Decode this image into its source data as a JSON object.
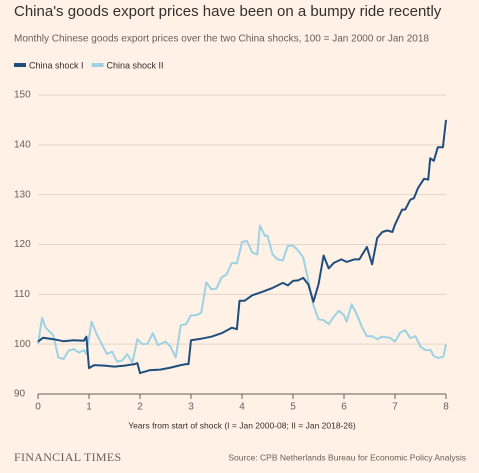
{
  "chart_data": {
    "type": "line",
    "title": "China's goods export prices have been on a bumpy ride recently",
    "subtitle": "Monthly Chinese goods export prices over the two China shocks, 100 = Jan 2000 or Jan 2018",
    "x_label": "Years from start of shock (I = Jan 2000-08; II = Jan 2018-26)",
    "source": "Source: CPB Netherlands Bureau for Economic Policy Analysis",
    "brand": "FINANCIAL TIMES",
    "xlim": [
      0,
      8
    ],
    "xticks": [
      0,
      1,
      2,
      3,
      4,
      5,
      6,
      7,
      8
    ],
    "ylim": [
      90,
      150
    ],
    "yticks": [
      90,
      100,
      110,
      120,
      130,
      140,
      150
    ],
    "grid": true,
    "legend": "top-left",
    "series": [
      {
        "name": "China shock I",
        "color": "#1f4e7e",
        "x": [
          0,
          0.1,
          0.3,
          0.5,
          0.7,
          0.9,
          0.95,
          1.0,
          1.1,
          1.3,
          1.5,
          1.7,
          1.9,
          1.95,
          2.0,
          2.2,
          2.4,
          2.6,
          2.8,
          2.9,
          2.95,
          3.0,
          3.2,
          3.4,
          3.6,
          3.8,
          3.9,
          3.95,
          4.05,
          4.2,
          4.4,
          4.6,
          4.8,
          4.9,
          5.0,
          5.1,
          5.2,
          5.3,
          5.4,
          5.5,
          5.6,
          5.7,
          5.8,
          5.95,
          6.05,
          6.2,
          6.3,
          6.45,
          6.55,
          6.65,
          6.75,
          6.85,
          6.95,
          7.0,
          7.14,
          7.2,
          7.3,
          7.37,
          7.45,
          7.57,
          7.65,
          7.69,
          7.76,
          7.84,
          7.94,
          8.0
        ],
        "values": [
          100.5,
          101.3,
          101,
          100.6,
          100.8,
          100.7,
          101.5,
          95.2,
          95.8,
          95.7,
          95.5,
          95.7,
          96,
          96.2,
          94.2,
          94.8,
          94.9,
          95.3,
          95.8,
          96,
          96,
          100.8,
          101.1,
          101.5,
          102.2,
          103.3,
          103,
          108.7,
          108.7,
          109.8,
          110.5,
          111.3,
          112.3,
          111.8,
          112.7,
          112.8,
          113.3,
          112,
          108.5,
          112,
          117.8,
          115.2,
          116.3,
          117,
          116.5,
          117,
          117,
          119.5,
          116,
          121.3,
          122.5,
          122.8,
          122.5,
          124,
          127,
          127,
          129,
          129.3,
          131.3,
          133.2,
          133,
          137.3,
          136.8,
          139.5,
          139.5,
          145
        ]
      },
      {
        "name": "China shock II",
        "color": "#9dd2e4",
        "x": [
          0,
          0.08,
          0.15,
          0.3,
          0.4,
          0.5,
          0.6,
          0.7,
          0.8,
          0.9,
          0.95,
          1.05,
          1.15,
          1.25,
          1.35,
          1.45,
          1.55,
          1.65,
          1.75,
          1.85,
          1.95,
          2.05,
          2.15,
          2.25,
          2.35,
          2.5,
          2.6,
          2.7,
          2.8,
          2.9,
          3.0,
          3.1,
          3.2,
          3.3,
          3.4,
          3.5,
          3.6,
          3.7,
          3.8,
          3.9,
          4.0,
          4.1,
          4.2,
          4.3,
          4.35,
          4.45,
          4.5,
          4.6,
          4.7,
          4.8,
          4.9,
          5.0,
          5.1,
          5.2,
          5.3,
          5.4,
          5.5,
          5.6,
          5.7,
          5.8,
          5.9,
          6.0,
          6.05,
          6.15,
          6.25,
          6.35,
          6.45,
          6.55,
          6.65,
          6.75,
          6.9,
          7.0,
          7.1,
          7.2,
          7.3,
          7.4,
          7.5,
          7.6,
          7.7,
          7.75,
          7.85,
          7.95,
          8.0
        ],
        "values": [
          100,
          105.3,
          103.3,
          101.8,
          97.3,
          97,
          98.7,
          99,
          98.3,
          98.8,
          98,
          104.5,
          102,
          100,
          98,
          98.5,
          96.5,
          96.7,
          98,
          96.3,
          101,
          100,
          100.1,
          102.2,
          99.8,
          100.5,
          99.5,
          97.3,
          103.8,
          104,
          105.8,
          105.8,
          106.3,
          112.4,
          111,
          111.2,
          113.4,
          114,
          116.3,
          116.2,
          120.5,
          120.7,
          118.4,
          118,
          123.8,
          121.7,
          121.8,
          118,
          117,
          116.8,
          119.7,
          119.8,
          118.8,
          117.4,
          112.8,
          107.8,
          105,
          104.8,
          104,
          105.5,
          106.7,
          105.8,
          104.5,
          108,
          106,
          103.5,
          101.6,
          101.6,
          101,
          101.5,
          101.3,
          100.5,
          102.3,
          102.8,
          101.2,
          101.6,
          99.5,
          98.8,
          98.8,
          97.7,
          97.2,
          97.5,
          100
        ]
      }
    ]
  }
}
